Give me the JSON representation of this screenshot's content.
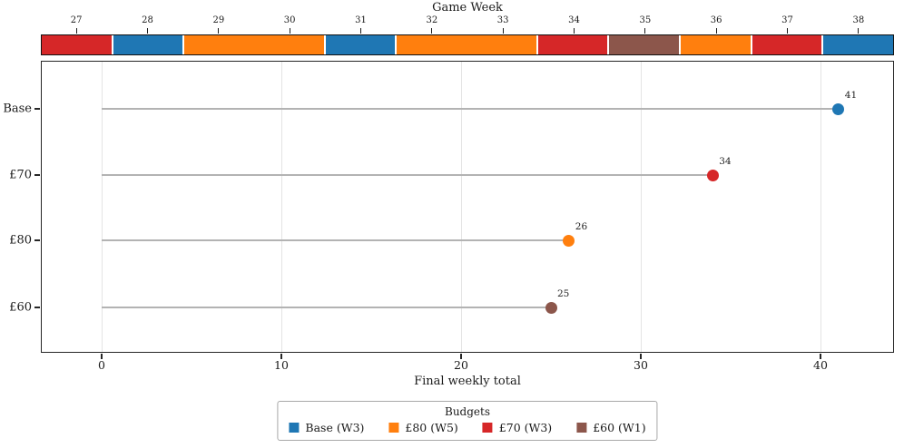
{
  "colors": {
    "blue": "#1f77b4",
    "orange": "#ff7f0e",
    "red": "#d62728",
    "brown": "#8c564b",
    "stem": "#b3b3b3",
    "grid": "#e4e4e4",
    "spine": "#262626"
  },
  "chart_data": {
    "type": "lollipop",
    "categories": [
      "Base",
      "£70",
      "£80",
      "£60"
    ],
    "values": [
      41,
      34,
      26,
      25
    ],
    "value_labels": [
      "41",
      "34",
      "26",
      "25"
    ],
    "point_colors": [
      "blue",
      "red",
      "orange",
      "brown"
    ],
    "xlabel": "Final weekly total",
    "xticks": [
      0,
      10,
      20,
      30,
      40
    ],
    "xlim": [
      -3.3,
      44.1
    ],
    "grid": "vertical-light",
    "top_axis": {
      "title": "Game Week",
      "weeks": [
        27,
        28,
        29,
        30,
        31,
        32,
        33,
        34,
        35,
        36,
        37,
        38
      ],
      "week_colors": [
        "red",
        "blue",
        "orange",
        "orange",
        "blue",
        "orange",
        "orange",
        "red",
        "brown",
        "orange",
        "red",
        "blue"
      ]
    },
    "legend": {
      "title": "Budgets",
      "position": "bottom-center",
      "entries": [
        {
          "label": "Base (W3)",
          "color": "blue"
        },
        {
          "label": "£80 (W5)",
          "color": "orange"
        },
        {
          "label": "£70 (W3)",
          "color": "red"
        },
        {
          "label": "£60 (W1)",
          "color": "brown"
        }
      ]
    }
  }
}
